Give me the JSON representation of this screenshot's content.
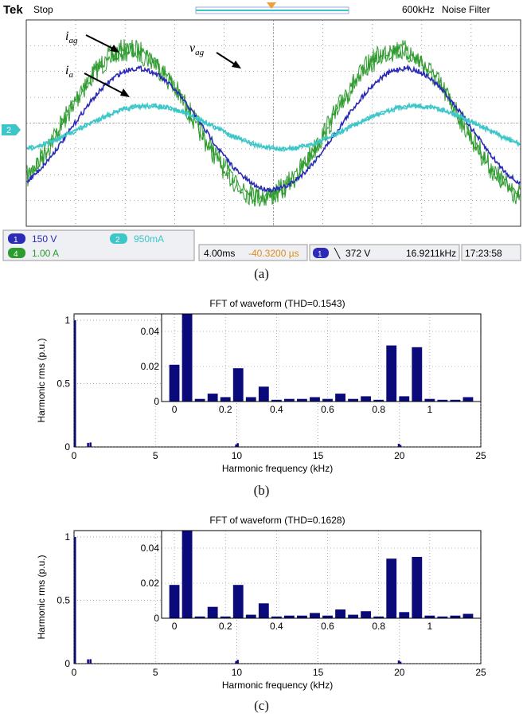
{
  "scope": {
    "brand": "Tek",
    "run_state": "Stop",
    "bandwidth": "600kHz",
    "filter": "Noise Filter",
    "trigger_ch_marker": "2",
    "ch1": {
      "index": "1",
      "scale": "150 V",
      "color": "#2b2bb8"
    },
    "ch2": {
      "index": "2",
      "scale": "950mA",
      "color": "#3cc6c8"
    },
    "ch4": {
      "index": "4",
      "scale": "1.00 A",
      "color": "#2e9b2e"
    },
    "timebase": "4.00ms",
    "delay": "-40.3200 µs",
    "trigger_ch": "1",
    "trigger_slope": "╲",
    "trigger_level": "372 V",
    "trig_freq": "16.9211kHz",
    "clock": "17:23:58",
    "labels": {
      "iag": "i",
      "iag_sub": "ag",
      "ia": "i",
      "ia_sub": "a",
      "vag": "v",
      "vag_sub": "ag"
    }
  },
  "captions": {
    "a": "(a)",
    "b": "(b)",
    "c": "(c)"
  },
  "chart_data": [
    {
      "type": "bar",
      "title": "FFT of waveform (THD=0.1543)",
      "xlabel": "Harmonic frequency (kHz)",
      "ylabel": "Harmonic rms (p.u.)",
      "xlim": [
        0,
        25
      ],
      "ylim": [
        0,
        1.05
      ],
      "xticks": [
        0,
        5,
        10,
        15,
        20,
        25
      ],
      "yticks": [
        0,
        0.5,
        1
      ],
      "main_bars": [
        {
          "x": 0.05,
          "y": 1.0
        },
        {
          "x": 0.85,
          "y": 0.032
        },
        {
          "x": 1.0,
          "y": 0.035
        },
        {
          "x": 9.95,
          "y": 0.02
        },
        {
          "x": 10.05,
          "y": 0.03
        },
        {
          "x": 19.95,
          "y": 0.025
        },
        {
          "x": 20.05,
          "y": 0.015
        }
      ],
      "inset": {
        "xlim": [
          -0.05,
          1.2
        ],
        "ylim": [
          0,
          0.05
        ],
        "xticks": [
          0,
          0.2,
          0.4,
          0.6,
          0.8,
          1
        ],
        "yticks": [
          0,
          0.02,
          0.04
        ],
        "bars": [
          {
            "x": 0.0,
            "y": 0.021
          },
          {
            "x": 0.05,
            "y": 0.05
          },
          {
            "x": 0.1,
            "y": 0.0015
          },
          {
            "x": 0.15,
            "y": 0.0045
          },
          {
            "x": 0.2,
            "y": 0.0025
          },
          {
            "x": 0.25,
            "y": 0.019
          },
          {
            "x": 0.3,
            "y": 0.0025
          },
          {
            "x": 0.35,
            "y": 0.0085
          },
          {
            "x": 0.4,
            "y": 0.001
          },
          {
            "x": 0.45,
            "y": 0.0015
          },
          {
            "x": 0.5,
            "y": 0.0015
          },
          {
            "x": 0.55,
            "y": 0.0025
          },
          {
            "x": 0.6,
            "y": 0.0015
          },
          {
            "x": 0.65,
            "y": 0.0045
          },
          {
            "x": 0.7,
            "y": 0.0015
          },
          {
            "x": 0.75,
            "y": 0.003
          },
          {
            "x": 0.8,
            "y": 0.001
          },
          {
            "x": 0.85,
            "y": 0.032
          },
          {
            "x": 0.9,
            "y": 0.003
          },
          {
            "x": 0.95,
            "y": 0.031
          },
          {
            "x": 1.0,
            "y": 0.0015
          },
          {
            "x": 1.05,
            "y": 0.001
          },
          {
            "x": 1.1,
            "y": 0.001
          },
          {
            "x": 1.15,
            "y": 0.0025
          }
        ]
      }
    },
    {
      "type": "bar",
      "title": "FFT of waveform (THD=0.1628)",
      "xlabel": "Harmonic frequency (kHz)",
      "ylabel": "Harmonic rms (p.u.)",
      "xlim": [
        0,
        25
      ],
      "ylim": [
        0,
        1.05
      ],
      "xticks": [
        0,
        5,
        10,
        15,
        20,
        25
      ],
      "yticks": [
        0,
        0.5,
        1
      ],
      "main_bars": [
        {
          "x": 0.05,
          "y": 1.0
        },
        {
          "x": 0.85,
          "y": 0.034
        },
        {
          "x": 1.0,
          "y": 0.035
        },
        {
          "x": 9.95,
          "y": 0.02
        },
        {
          "x": 10.05,
          "y": 0.03
        },
        {
          "x": 19.95,
          "y": 0.025
        },
        {
          "x": 20.05,
          "y": 0.015
        }
      ],
      "inset": {
        "xlim": [
          -0.05,
          1.2
        ],
        "ylim": [
          0,
          0.05
        ],
        "xticks": [
          0,
          0.2,
          0.4,
          0.6,
          0.8,
          1
        ],
        "yticks": [
          0,
          0.02,
          0.04
        ],
        "bars": [
          {
            "x": 0.0,
            "y": 0.019
          },
          {
            "x": 0.05,
            "y": 0.05
          },
          {
            "x": 0.1,
            "y": 0.001
          },
          {
            "x": 0.15,
            "y": 0.0065
          },
          {
            "x": 0.2,
            "y": 0.001
          },
          {
            "x": 0.25,
            "y": 0.019
          },
          {
            "x": 0.3,
            "y": 0.002
          },
          {
            "x": 0.35,
            "y": 0.0085
          },
          {
            "x": 0.4,
            "y": 0.001
          },
          {
            "x": 0.45,
            "y": 0.0015
          },
          {
            "x": 0.5,
            "y": 0.0015
          },
          {
            "x": 0.55,
            "y": 0.003
          },
          {
            "x": 0.6,
            "y": 0.0015
          },
          {
            "x": 0.65,
            "y": 0.005
          },
          {
            "x": 0.7,
            "y": 0.002
          },
          {
            "x": 0.75,
            "y": 0.004
          },
          {
            "x": 0.8,
            "y": 0.001
          },
          {
            "x": 0.85,
            "y": 0.034
          },
          {
            "x": 0.9,
            "y": 0.0035
          },
          {
            "x": 0.95,
            "y": 0.035
          },
          {
            "x": 1.0,
            "y": 0.0015
          },
          {
            "x": 1.05,
            "y": 0.001
          },
          {
            "x": 1.1,
            "y": 0.0015
          },
          {
            "x": 1.15,
            "y": 0.0025
          }
        ]
      }
    }
  ]
}
